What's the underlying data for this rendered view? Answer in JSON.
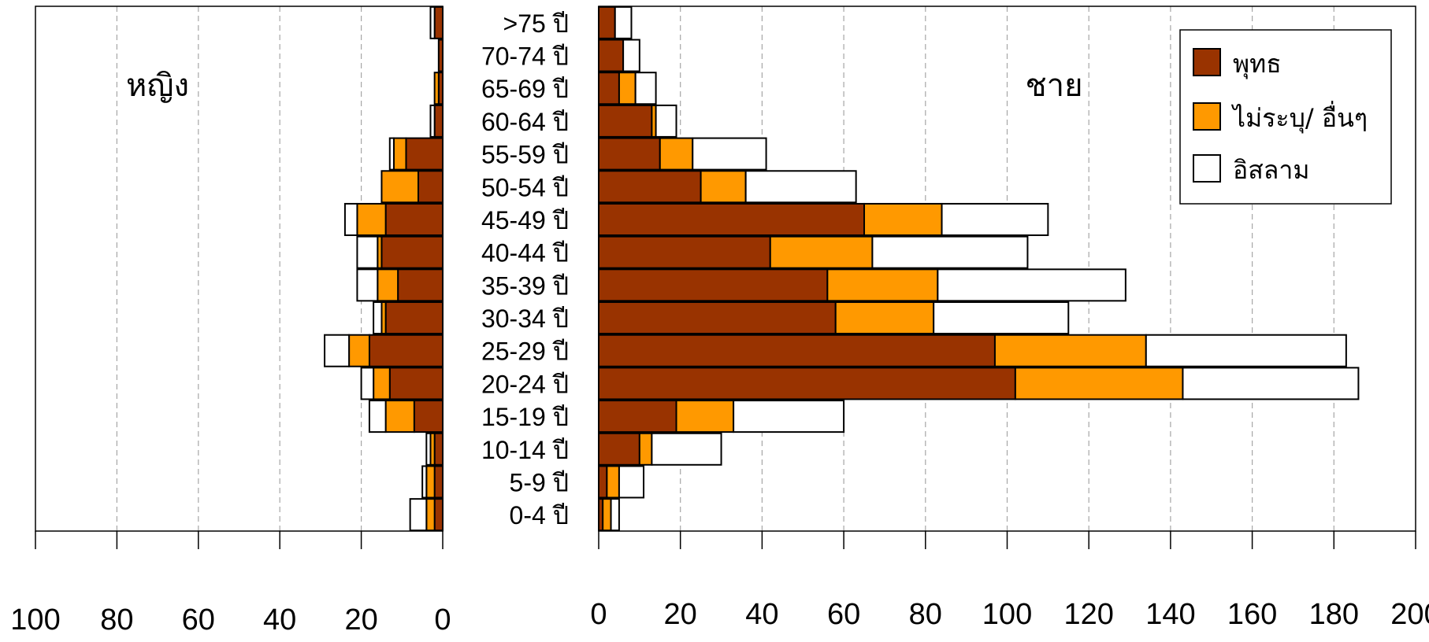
{
  "chart_data": {
    "type": "bar",
    "orientation": "horizontal",
    "layout": "population-pyramid",
    "stacked": true,
    "categories": [
      "0-4 ปี",
      "5-9 ปี",
      "10-14 ปี",
      "15-19 ปี",
      "20-24 ปี",
      "25-29 ปี",
      "30-34 ปี",
      "35-39 ปี",
      "40-44 ปี",
      "45-49 ปี",
      "50-54 ปี",
      "55-59 ปี",
      "60-64 ปี",
      "65-69 ปี",
      "70-74 ปี",
      ">75 ปี"
    ],
    "legend": {
      "position": "top-right",
      "entries": [
        {
          "name": "พุทธ",
          "color": "#993300"
        },
        {
          "name": "ไม่ระบุ/ อื่นๆ",
          "color": "#ff9900"
        },
        {
          "name": "อิสลาม",
          "color": "#ffffff"
        }
      ]
    },
    "grid": true,
    "panels": [
      {
        "title": "หญิง",
        "direction": "leftward",
        "xlim": [
          0,
          100
        ],
        "ticks": [
          "100",
          "80",
          "60",
          "40",
          "20",
          "0"
        ],
        "tick_values": [
          100,
          80,
          60,
          40,
          20,
          0
        ],
        "series": [
          {
            "name": "พุทธ",
            "values": [
              2,
              2,
              2,
              7,
              13,
              18,
              14,
              11,
              15,
              14,
              6,
              9,
              2,
              1,
              1,
              2
            ]
          },
          {
            "name": "ไม่ระบุ/ อื่นๆ",
            "values": [
              2,
              2,
              1,
              7,
              4,
              5,
              1,
              5,
              1,
              7,
              9,
              3,
              0,
              1,
              0,
              0
            ]
          },
          {
            "name": "อิสลาม",
            "values": [
              4,
              1,
              1,
              4,
              3,
              6,
              2,
              5,
              5,
              3,
              0,
              1,
              1,
              0,
              0,
              1
            ]
          }
        ]
      },
      {
        "title": "ชาย",
        "direction": "rightward",
        "xlim": [
          0,
          200
        ],
        "ticks": [
          "0",
          "20",
          "40",
          "60",
          "80",
          "100",
          "120",
          "140",
          "160",
          "180",
          "200"
        ],
        "tick_values": [
          0,
          20,
          40,
          60,
          80,
          100,
          120,
          140,
          160,
          180,
          200
        ],
        "series": [
          {
            "name": "พุทธ",
            "values": [
              1,
              2,
              10,
              19,
              102,
              97,
              58,
              56,
              42,
              65,
              25,
              15,
              13,
              5,
              6,
              4
            ]
          },
          {
            "name": "ไม่ระบุ/ อื่นๆ",
            "values": [
              2,
              3,
              3,
              14,
              41,
              37,
              24,
              27,
              25,
              19,
              11,
              8,
              1,
              4,
              0,
              0
            ]
          },
          {
            "name": "อิสลาม",
            "values": [
              2,
              6,
              17,
              27,
              43,
              49,
              33,
              46,
              38,
              26,
              27,
              18,
              5,
              5,
              4,
              4
            ]
          }
        ]
      }
    ]
  }
}
